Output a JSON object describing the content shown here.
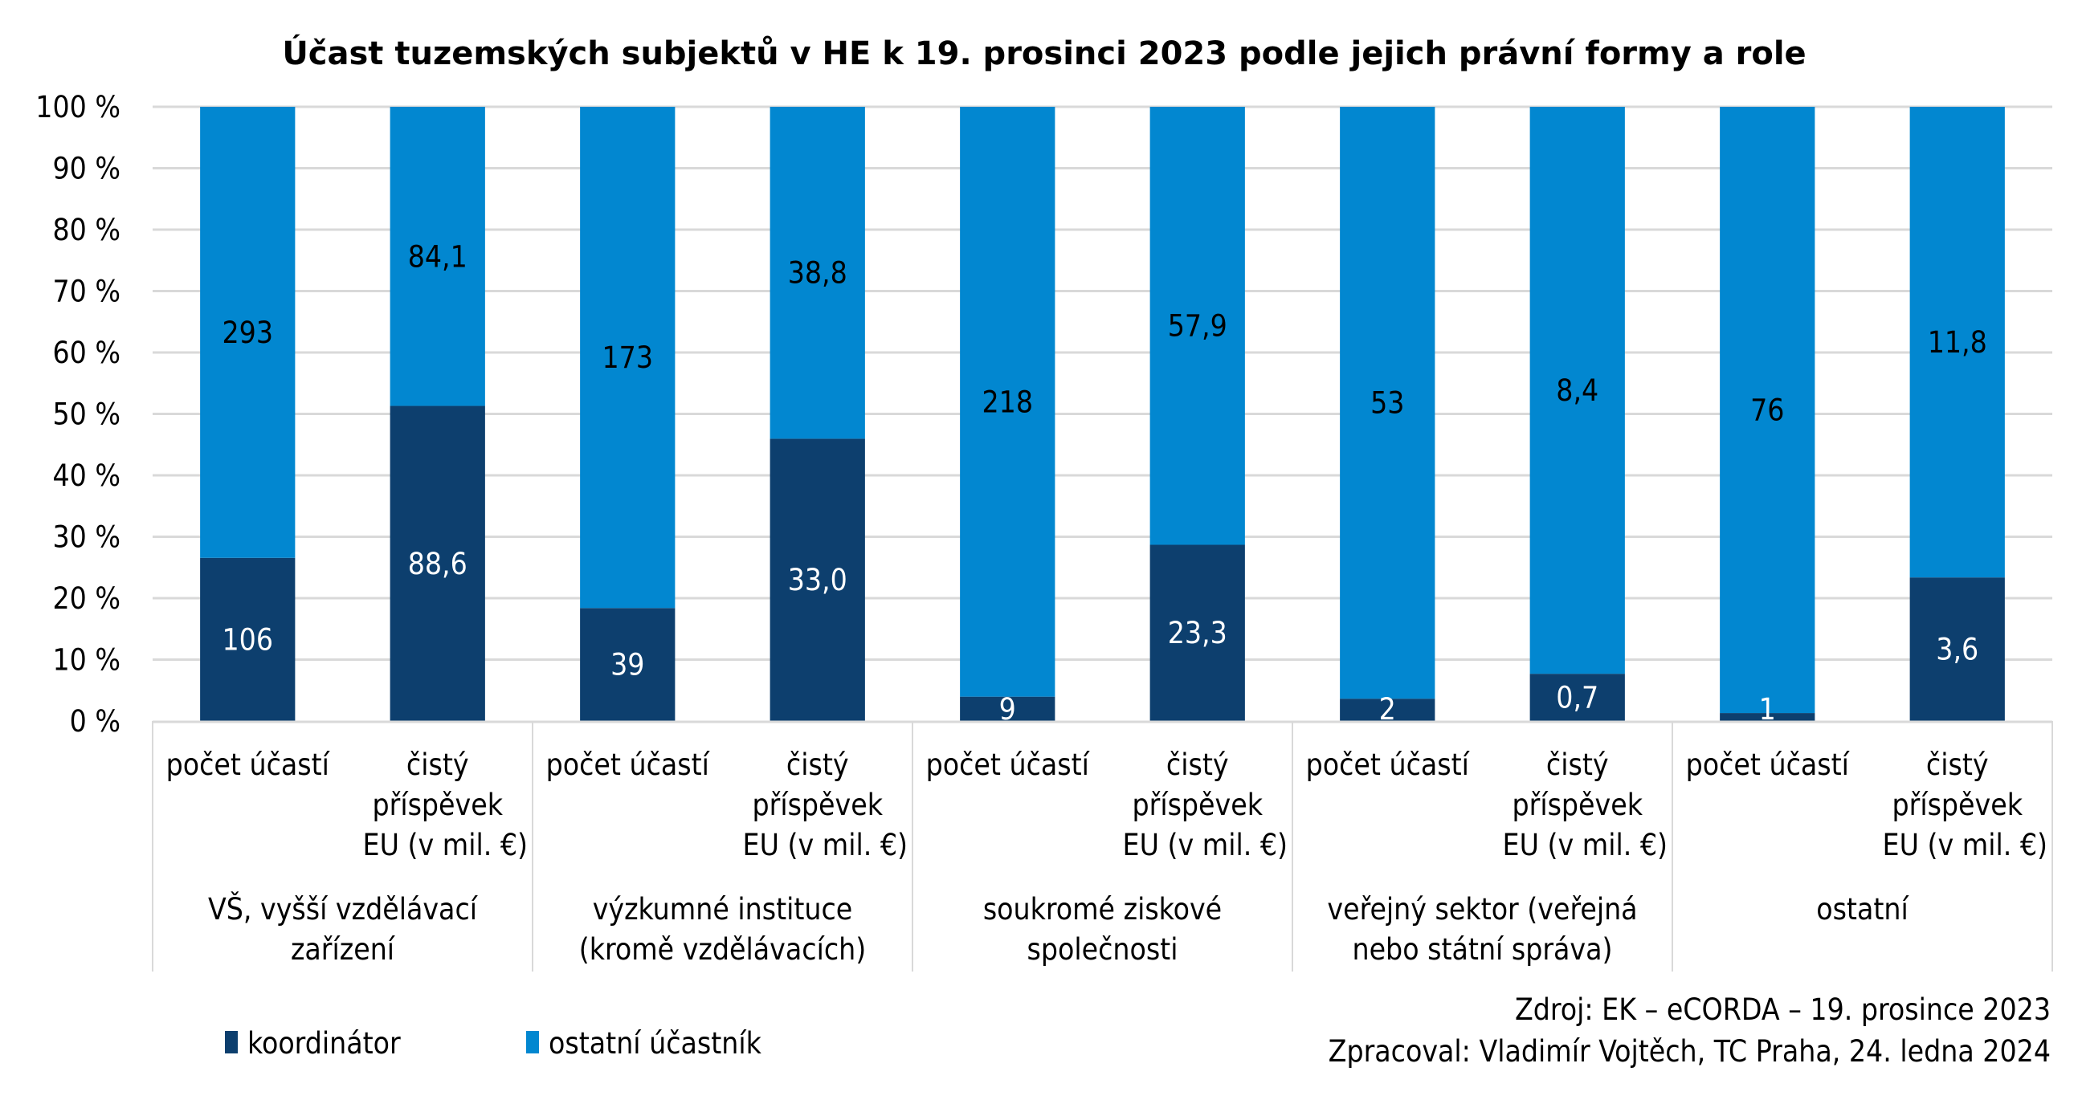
{
  "chart_data": {
    "type": "bar",
    "stacked": "percent",
    "title": "Účast tuzemských subjektů v HE k 19. prosinci 2023 podle jejich právní formy a role",
    "xlabel": "",
    "ylabel": "",
    "ylim": [
      0,
      100
    ],
    "y_ticks": [
      "0 %",
      "10 %",
      "20 %",
      "30 %",
      "40 %",
      "50 %",
      "60 %",
      "70 %",
      "80 %",
      "90 %",
      "100 %"
    ],
    "grid": true,
    "legend_position": "bottom-left",
    "groups": [
      {
        "label": "VŠ, vyšší vzdělávací zařízení",
        "label_lines": [
          "VŠ, vyšší vzdělávací",
          "zařízení"
        ]
      },
      {
        "label": "výzkumné instituce (kromě vzdělávacích)",
        "label_lines": [
          "výzkumné instituce",
          "(kromě vzdělávacích)"
        ]
      },
      {
        "label": "soukromé ziskové společnosti",
        "label_lines": [
          "soukromé ziskové",
          "společnosti"
        ]
      },
      {
        "label": "veřejný sektor (veřejná nebo státní správa)",
        "label_lines": [
          "veřejný sektor (veřejná",
          "nebo státní správa)"
        ]
      },
      {
        "label": "ostatní",
        "label_lines": [
          "ostatní"
        ]
      }
    ],
    "subcategories": [
      {
        "label": "počet účastí",
        "label_lines": [
          "počet účastí"
        ]
      },
      {
        "label": "čistý příspěvek EU (v mil. €)",
        "label_lines": [
          "čistý",
          "příspěvek",
          "EU (v mil. €)"
        ]
      }
    ],
    "categories": [
      "VŠ – počet účastí",
      "VŠ – čistý příspěvek EU (v mil. €)",
      "výzkumné instituce – počet účastí",
      "výzkumné instituce – čistý příspěvek EU (v mil. €)",
      "soukromé ziskové společnosti – počet účastí",
      "soukromé ziskové společnosti – čistý příspěvek EU (v mil. €)",
      "veřejný sektor – počet účastí",
      "veřejný sektor – čistý příspěvek EU (v mil. €)",
      "ostatní – počet účastí",
      "ostatní – čistý příspěvek EU (v mil. €)"
    ],
    "series": [
      {
        "name": "koordinátor",
        "color": "#0d3f6e",
        "label_color": "#ffffff",
        "values": [
          106,
          88.6,
          39,
          33.0,
          9,
          23.3,
          2,
          0.7,
          1,
          3.6
        ],
        "labels": [
          "106",
          "88,6",
          "39",
          "33,0",
          "9",
          "23,3",
          "2",
          "0,7",
          "1",
          "3,6"
        ]
      },
      {
        "name": "ostatní účastník",
        "color": "#0287d0",
        "label_color": "#000000",
        "values": [
          293,
          84.1,
          173,
          38.8,
          218,
          57.9,
          53,
          8.4,
          76,
          11.8
        ],
        "labels": [
          "293",
          "84,1",
          "173",
          "38,8",
          "218",
          "57,9",
          "53",
          "8,4",
          "76",
          "11,8"
        ]
      }
    ]
  },
  "source": {
    "line1": "Zdroj: EK – eCORDA – 19. prosince 2023",
    "line2": "Zpracoval: Vladimír Vojtěch, TC Praha, 24. ledna 2024"
  },
  "colors": {
    "gridline": "#d9d9d9",
    "axis": "#d9d9d9"
  }
}
